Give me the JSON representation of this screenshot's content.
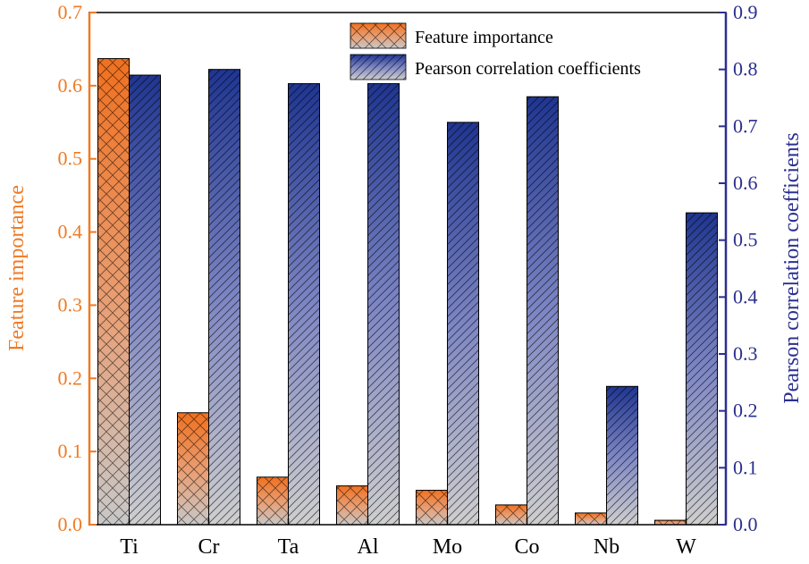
{
  "chart_data": {
    "type": "bar",
    "categories": [
      "Ti",
      "Cr",
      "Ta",
      "Al",
      "Mo",
      "Co",
      "Nb",
      "W"
    ],
    "series": [
      {
        "name": "Feature importance",
        "axis": "left",
        "values": [
          0.637,
          0.153,
          0.065,
          0.053,
          0.047,
          0.027,
          0.016,
          0.006
        ]
      },
      {
        "name": "Pearson correlation coefficients",
        "axis": "right",
        "values": [
          0.79,
          0.8,
          0.775,
          0.775,
          0.707,
          0.752,
          0.243,
          0.548
        ]
      }
    ],
    "ylabel_left": "Feature importance",
    "ylabel_right": "Pearson correlation coefficients",
    "ylim_left": [
      0,
      0.7
    ],
    "ylim_right": [
      0,
      0.9
    ],
    "yticks_left": [
      "0.0",
      "0.1",
      "0.2",
      "0.3",
      "0.4",
      "0.5",
      "0.6",
      "0.7"
    ],
    "yticks_right": [
      "0.0",
      "0.1",
      "0.2",
      "0.3",
      "0.4",
      "0.5",
      "0.6",
      "0.7",
      "0.8",
      "0.9"
    ],
    "legend_position": "top-right",
    "grid": false,
    "colors": {
      "left_axis": "#f07a24",
      "right_axis": "#2b2f8f",
      "feature_top": "#f07020",
      "feature_bottom": "#c8c8c8",
      "pearson_top": "#1f3590",
      "pearson_bottom": "#cfcfcf"
    }
  }
}
